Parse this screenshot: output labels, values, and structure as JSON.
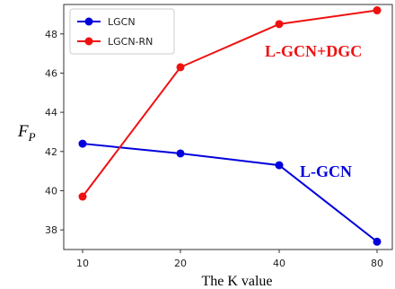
{
  "chart_data": {
    "type": "line",
    "categories": [
      "10",
      "20",
      "40",
      "80"
    ],
    "series": [
      {
        "name": "LGCN",
        "color": "#0000dd",
        "values": [
          42.4,
          41.9,
          41.3,
          37.4
        ]
      },
      {
        "name": "LGCN-RN",
        "color": "#ee1111",
        "values": [
          39.7,
          46.3,
          48.5,
          49.2
        ]
      }
    ],
    "xlabel": "The K value",
    "ylabel": "F",
    "ylabel_sub": "P",
    "ylim": [
      37,
      49.5
    ],
    "yticks": [
      "38",
      "40",
      "42",
      "44",
      "46",
      "48"
    ],
    "legend": "top-left",
    "grid": false,
    "annotations": [
      {
        "text": "L-GCN+DGC",
        "color": "#ee1111",
        "series": "LGCN-RN"
      },
      {
        "text": "L-GCN",
        "color": "#0000dd",
        "series": "LGCN"
      }
    ]
  }
}
